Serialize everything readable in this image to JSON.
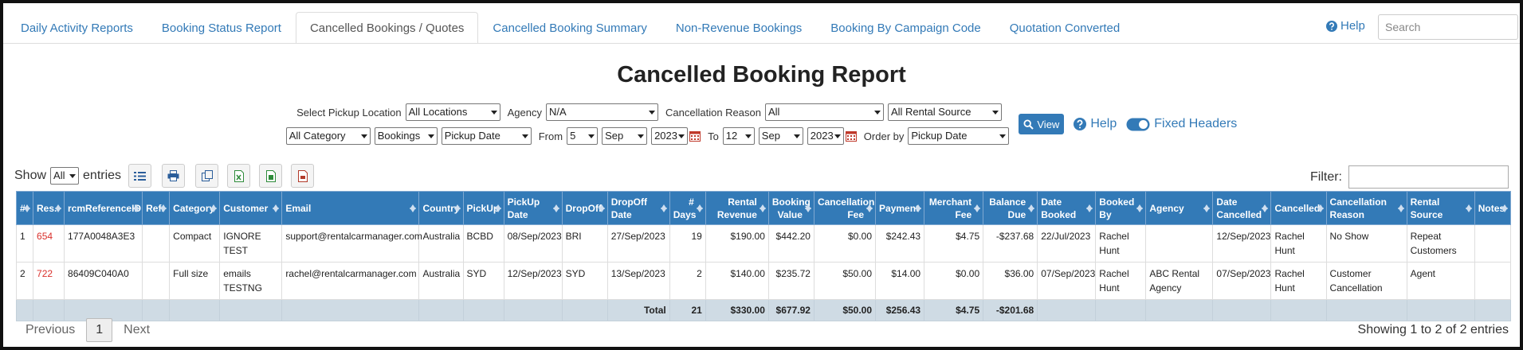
{
  "tabs": [
    "Daily Activity Reports",
    "Booking Status Report",
    "Cancelled Bookings / Quotes",
    "Cancelled Booking Summary",
    "Non-Revenue Bookings",
    "Booking By Campaign Code",
    "Quotation Converted"
  ],
  "active_tab": 2,
  "header": {
    "help": "Help",
    "search_placeholder": "Search"
  },
  "title": "Cancelled Booking Report",
  "filters": {
    "rows": [
      [
        {
          "label": "Select Pickup Location",
          "value": "All Locations"
        },
        {
          "label": "Agency",
          "value": "N/A"
        },
        {
          "label": "Cancellation Reason",
          "value": "All"
        },
        {
          "value": "All Rental Source"
        }
      ],
      [
        {
          "value": "All Category"
        },
        {
          "value": "Bookings"
        },
        {
          "value": "Pickup Date"
        },
        {
          "label": "From",
          "value": "5"
        },
        {
          "value": "Sep"
        },
        {
          "value": "2023",
          "calendar": true
        },
        {
          "label": "To",
          "value": "12"
        },
        {
          "value": "Sep"
        },
        {
          "value": "2023",
          "calendar": true
        },
        {
          "label": "Order by",
          "value": "Pickup Date"
        }
      ]
    ],
    "view": "View",
    "help": "Help",
    "fixed_headers": "Fixed Headers"
  },
  "table_controls": {
    "show": "Show",
    "entries_select": "All",
    "entries": "entries",
    "filter": "Filter:"
  },
  "table": {
    "columns": [
      "#",
      "Res.",
      "rcmReferenceID",
      "Ref.",
      "Category",
      "Customer",
      "Email",
      "Country",
      "PickUp",
      "PickUp Date",
      "DropOff",
      "DropOff Date",
      "# Days",
      "Rental Revenue",
      "Booking Value",
      "Cancellation Fee",
      "Payment",
      "Merchant Fee",
      "Balance Due",
      "Date Booked",
      "Booked By",
      "Agency",
      "Date Cancelled",
      "Cancelled",
      "Cancellation Reason",
      "Rental Source",
      "Notes"
    ],
    "rows": [
      [
        "1",
        "654",
        "177A0048A3E3",
        null,
        "Compact",
        "IGNORE TEST",
        "support@rentalcarmanager.com",
        "Australia",
        "BCBD",
        "08/Sep/2023",
        "BRI",
        "27/Sep/2023",
        "19",
        "$190.00",
        "$442.20",
        "$0.00",
        "$242.43",
        "$4.75",
        "-$237.68",
        "22/Jul/2023",
        "Rachel Hunt",
        null,
        "12/Sep/2023",
        "Rachel Hunt",
        "No Show",
        "Repeat Customers",
        null
      ],
      [
        "2",
        "722",
        "86409C040A0",
        null,
        "Full size",
        "emails TESTNG",
        "rachel@rentalcarmanager.com",
        "Australia",
        "SYD",
        "12/Sep/2023",
        "SYD",
        "13/Sep/2023",
        "2",
        "$140.00",
        "$235.72",
        "$50.00",
        "$14.00",
        "$0.00",
        "$36.00",
        "07/Sep/2023",
        "Rachel Hunt",
        "ABC Rental Agency",
        "07/Sep/2023",
        "Rachel Hunt",
        "Customer Cancellation",
        "Agent",
        null
      ]
    ],
    "totals": {
      "label": "Total",
      "values": [
        "21",
        "$330.00",
        "$677.92",
        "$50.00",
        "$256.43",
        "$4.75",
        "-$201.68"
      ]
    }
  },
  "footer": {
    "previous": "Previous",
    "page": "1",
    "next": "Next",
    "info": "Showing 1 to 2 of 2 entries"
  }
}
